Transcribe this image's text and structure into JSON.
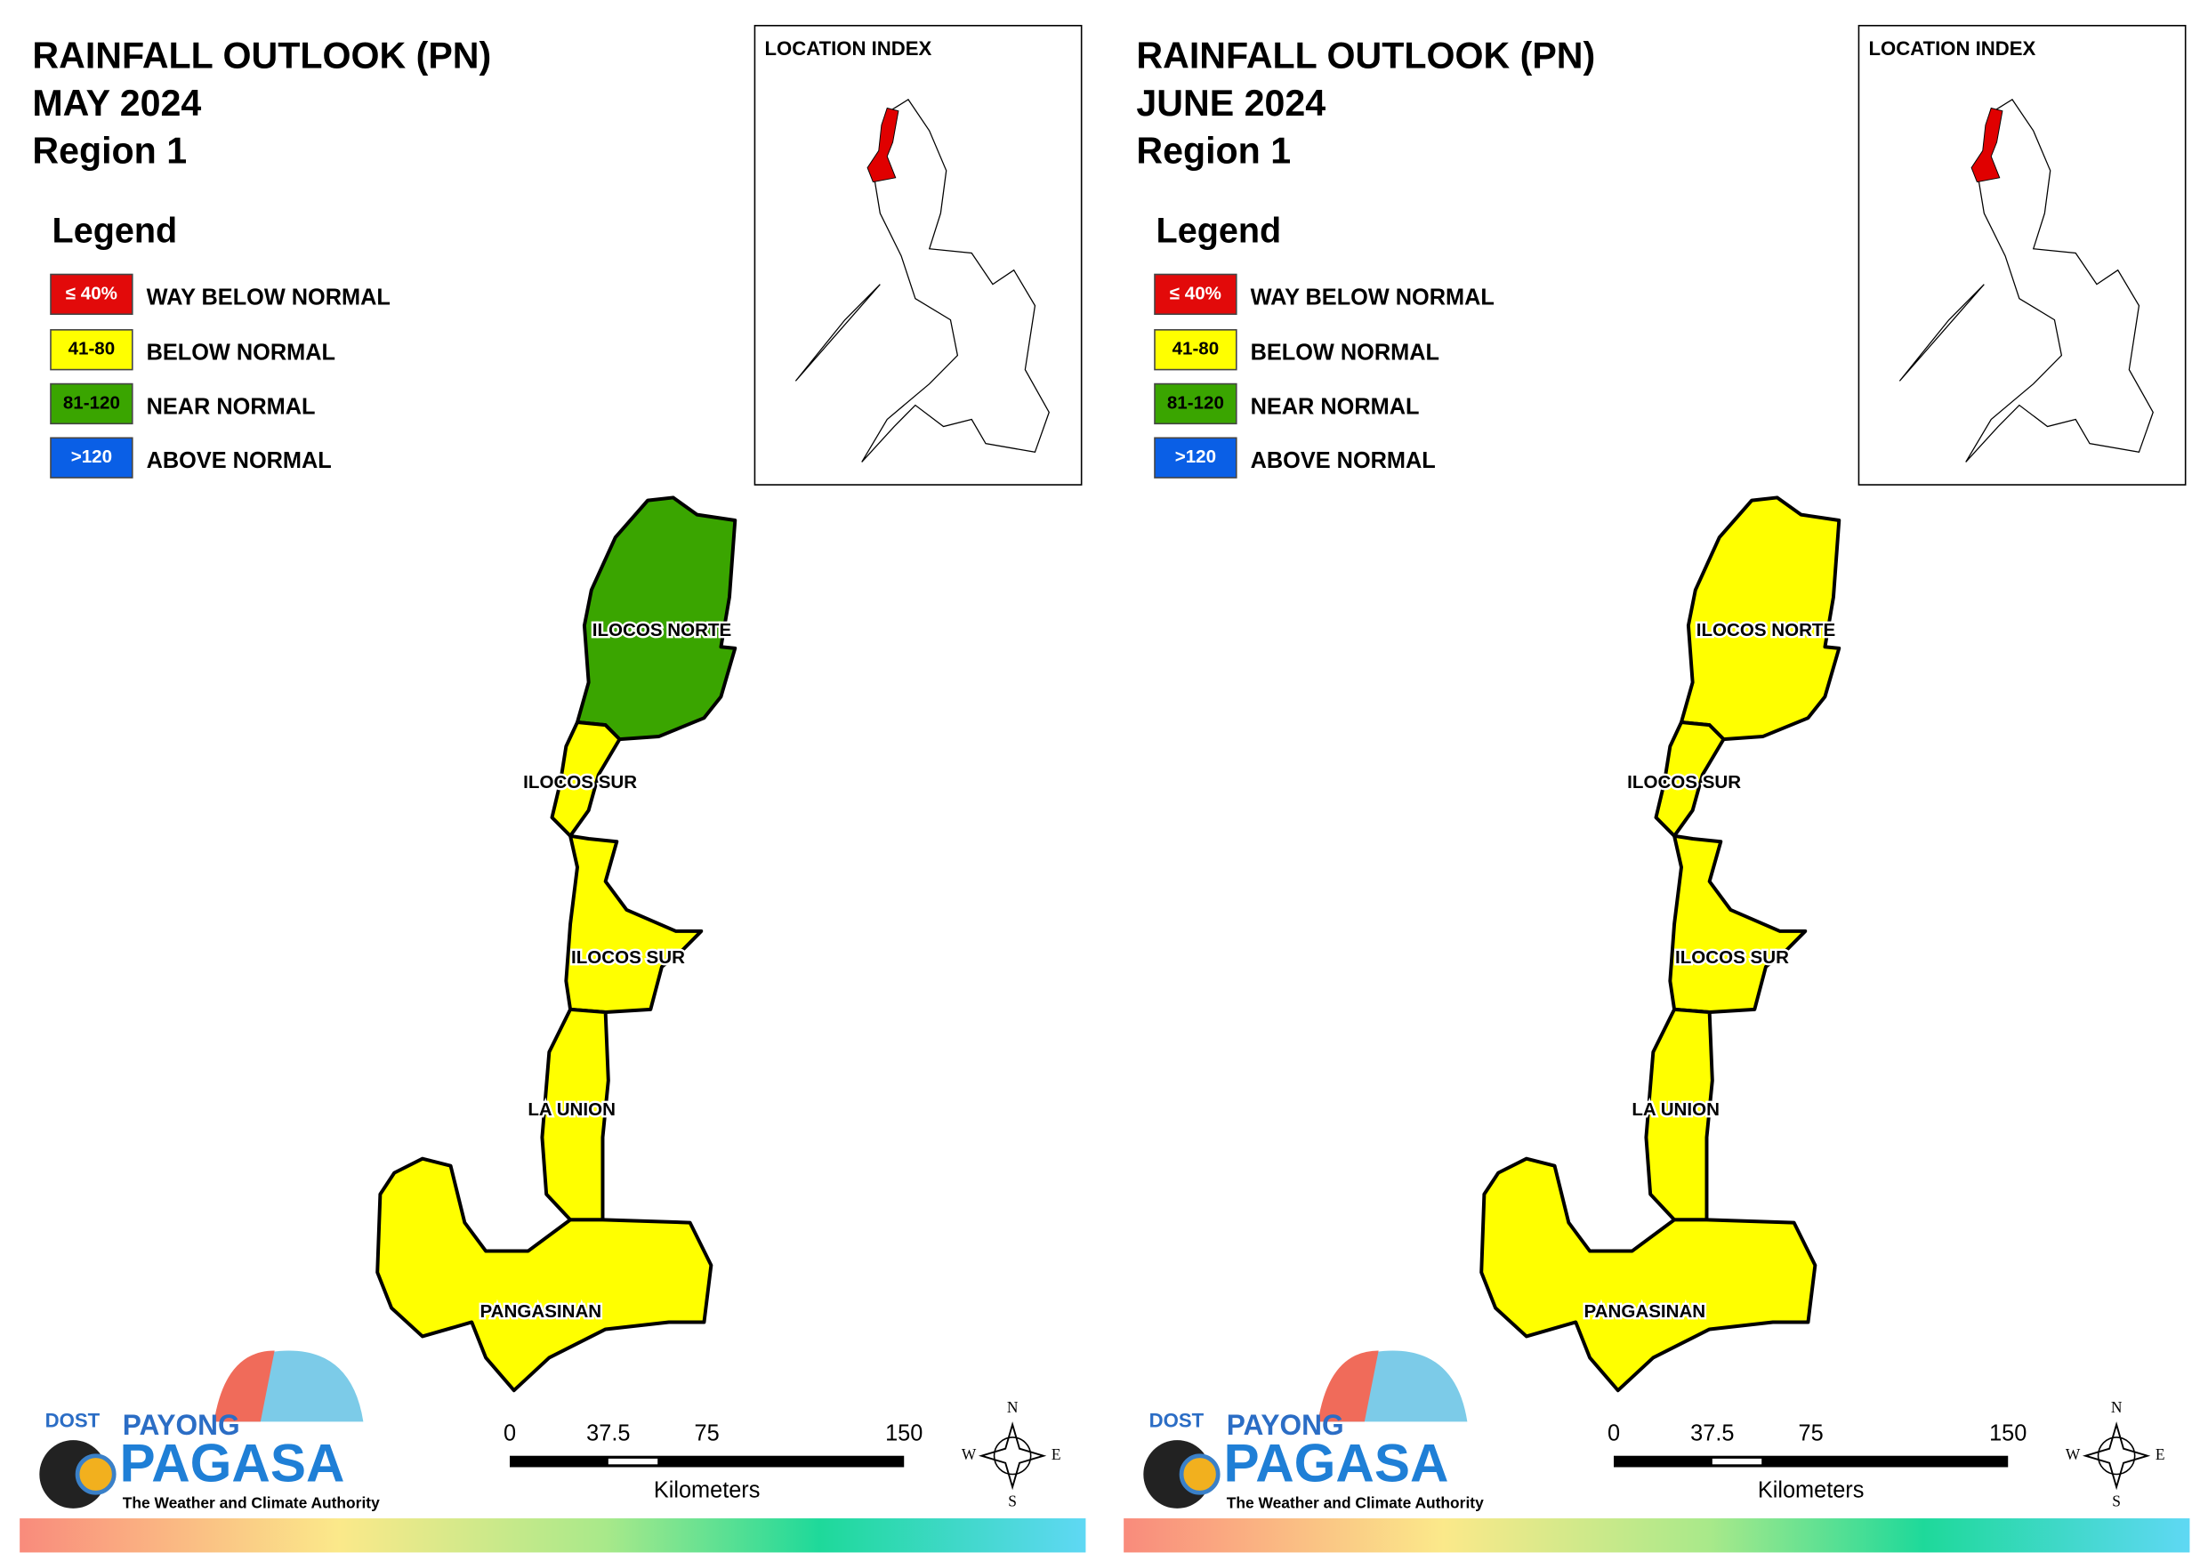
{
  "panels": [
    {
      "title": [
        "RAINFALL OUTLOOK (PN)",
        "MAY 2024",
        "Region 1"
      ],
      "legend": {
        "title": "Legend",
        "items": [
          {
            "code": "≤ 40%",
            "label": "WAY BELOW NORMAL",
            "color": "#e20a0a"
          },
          {
            "code": "41-80",
            "label": "BELOW NORMAL",
            "color": "#ffff00"
          },
          {
            "code": "81-120",
            "label": "NEAR NORMAL",
            "color": "#3aa500"
          },
          {
            "code": ">120",
            "label": "ABOVE NORMAL",
            "color": "#0a5fe6"
          }
        ]
      },
      "location_index": "LOCATION INDEX",
      "provinces": [
        {
          "label": "ILOCOS NORTE",
          "color": "#3aa500"
        },
        {
          "label": "ILOCOS SUR",
          "color": "#ffff00"
        },
        {
          "label": "ILOCOS SUR",
          "color": "#ffff00"
        },
        {
          "label": "LA UNION",
          "color": "#ffff00"
        },
        {
          "label": "PANGASINAN",
          "color": "#ffff00"
        }
      ],
      "scale_bar": {
        "ticks": [
          0,
          37.5,
          75,
          150
        ],
        "unit": "Kilometers"
      },
      "compass": [
        "N",
        "E",
        "S",
        "W"
      ],
      "logo": {
        "agency": "DOST",
        "name": "PAYONG",
        "brand": "PAGASA",
        "tagline": "The Weather and Climate Authority"
      }
    },
    {
      "title": [
        "RAINFALL OUTLOOK (PN)",
        "JUNE 2024",
        "Region 1"
      ],
      "legend": {
        "title": "Legend",
        "items": [
          {
            "code": "≤ 40%",
            "label": "WAY BELOW NORMAL",
            "color": "#e20a0a"
          },
          {
            "code": "41-80",
            "label": "BELOW NORMAL",
            "color": "#ffff00"
          },
          {
            "code": "81-120",
            "label": "NEAR NORMAL",
            "color": "#3aa500"
          },
          {
            "code": ">120",
            "label": "ABOVE NORMAL",
            "color": "#0a5fe6"
          }
        ]
      },
      "location_index": "LOCATION INDEX",
      "provinces": [
        {
          "label": "ILOCOS NORTE",
          "color": "#ffff00"
        },
        {
          "label": "ILOCOS SUR",
          "color": "#ffff00"
        },
        {
          "label": "ILOCOS SUR",
          "color": "#ffff00"
        },
        {
          "label": "LA UNION",
          "color": "#ffff00"
        },
        {
          "label": "PANGASINAN",
          "color": "#ffff00"
        }
      ],
      "scale_bar": {
        "ticks": [
          0,
          37.5,
          75,
          150
        ],
        "unit": "Kilometers"
      },
      "compass": [
        "N",
        "E",
        "S",
        "W"
      ],
      "logo": {
        "agency": "DOST",
        "name": "PAYONG",
        "brand": "PAGASA",
        "tagline": "The Weather and Climate Authority"
      }
    }
  ]
}
